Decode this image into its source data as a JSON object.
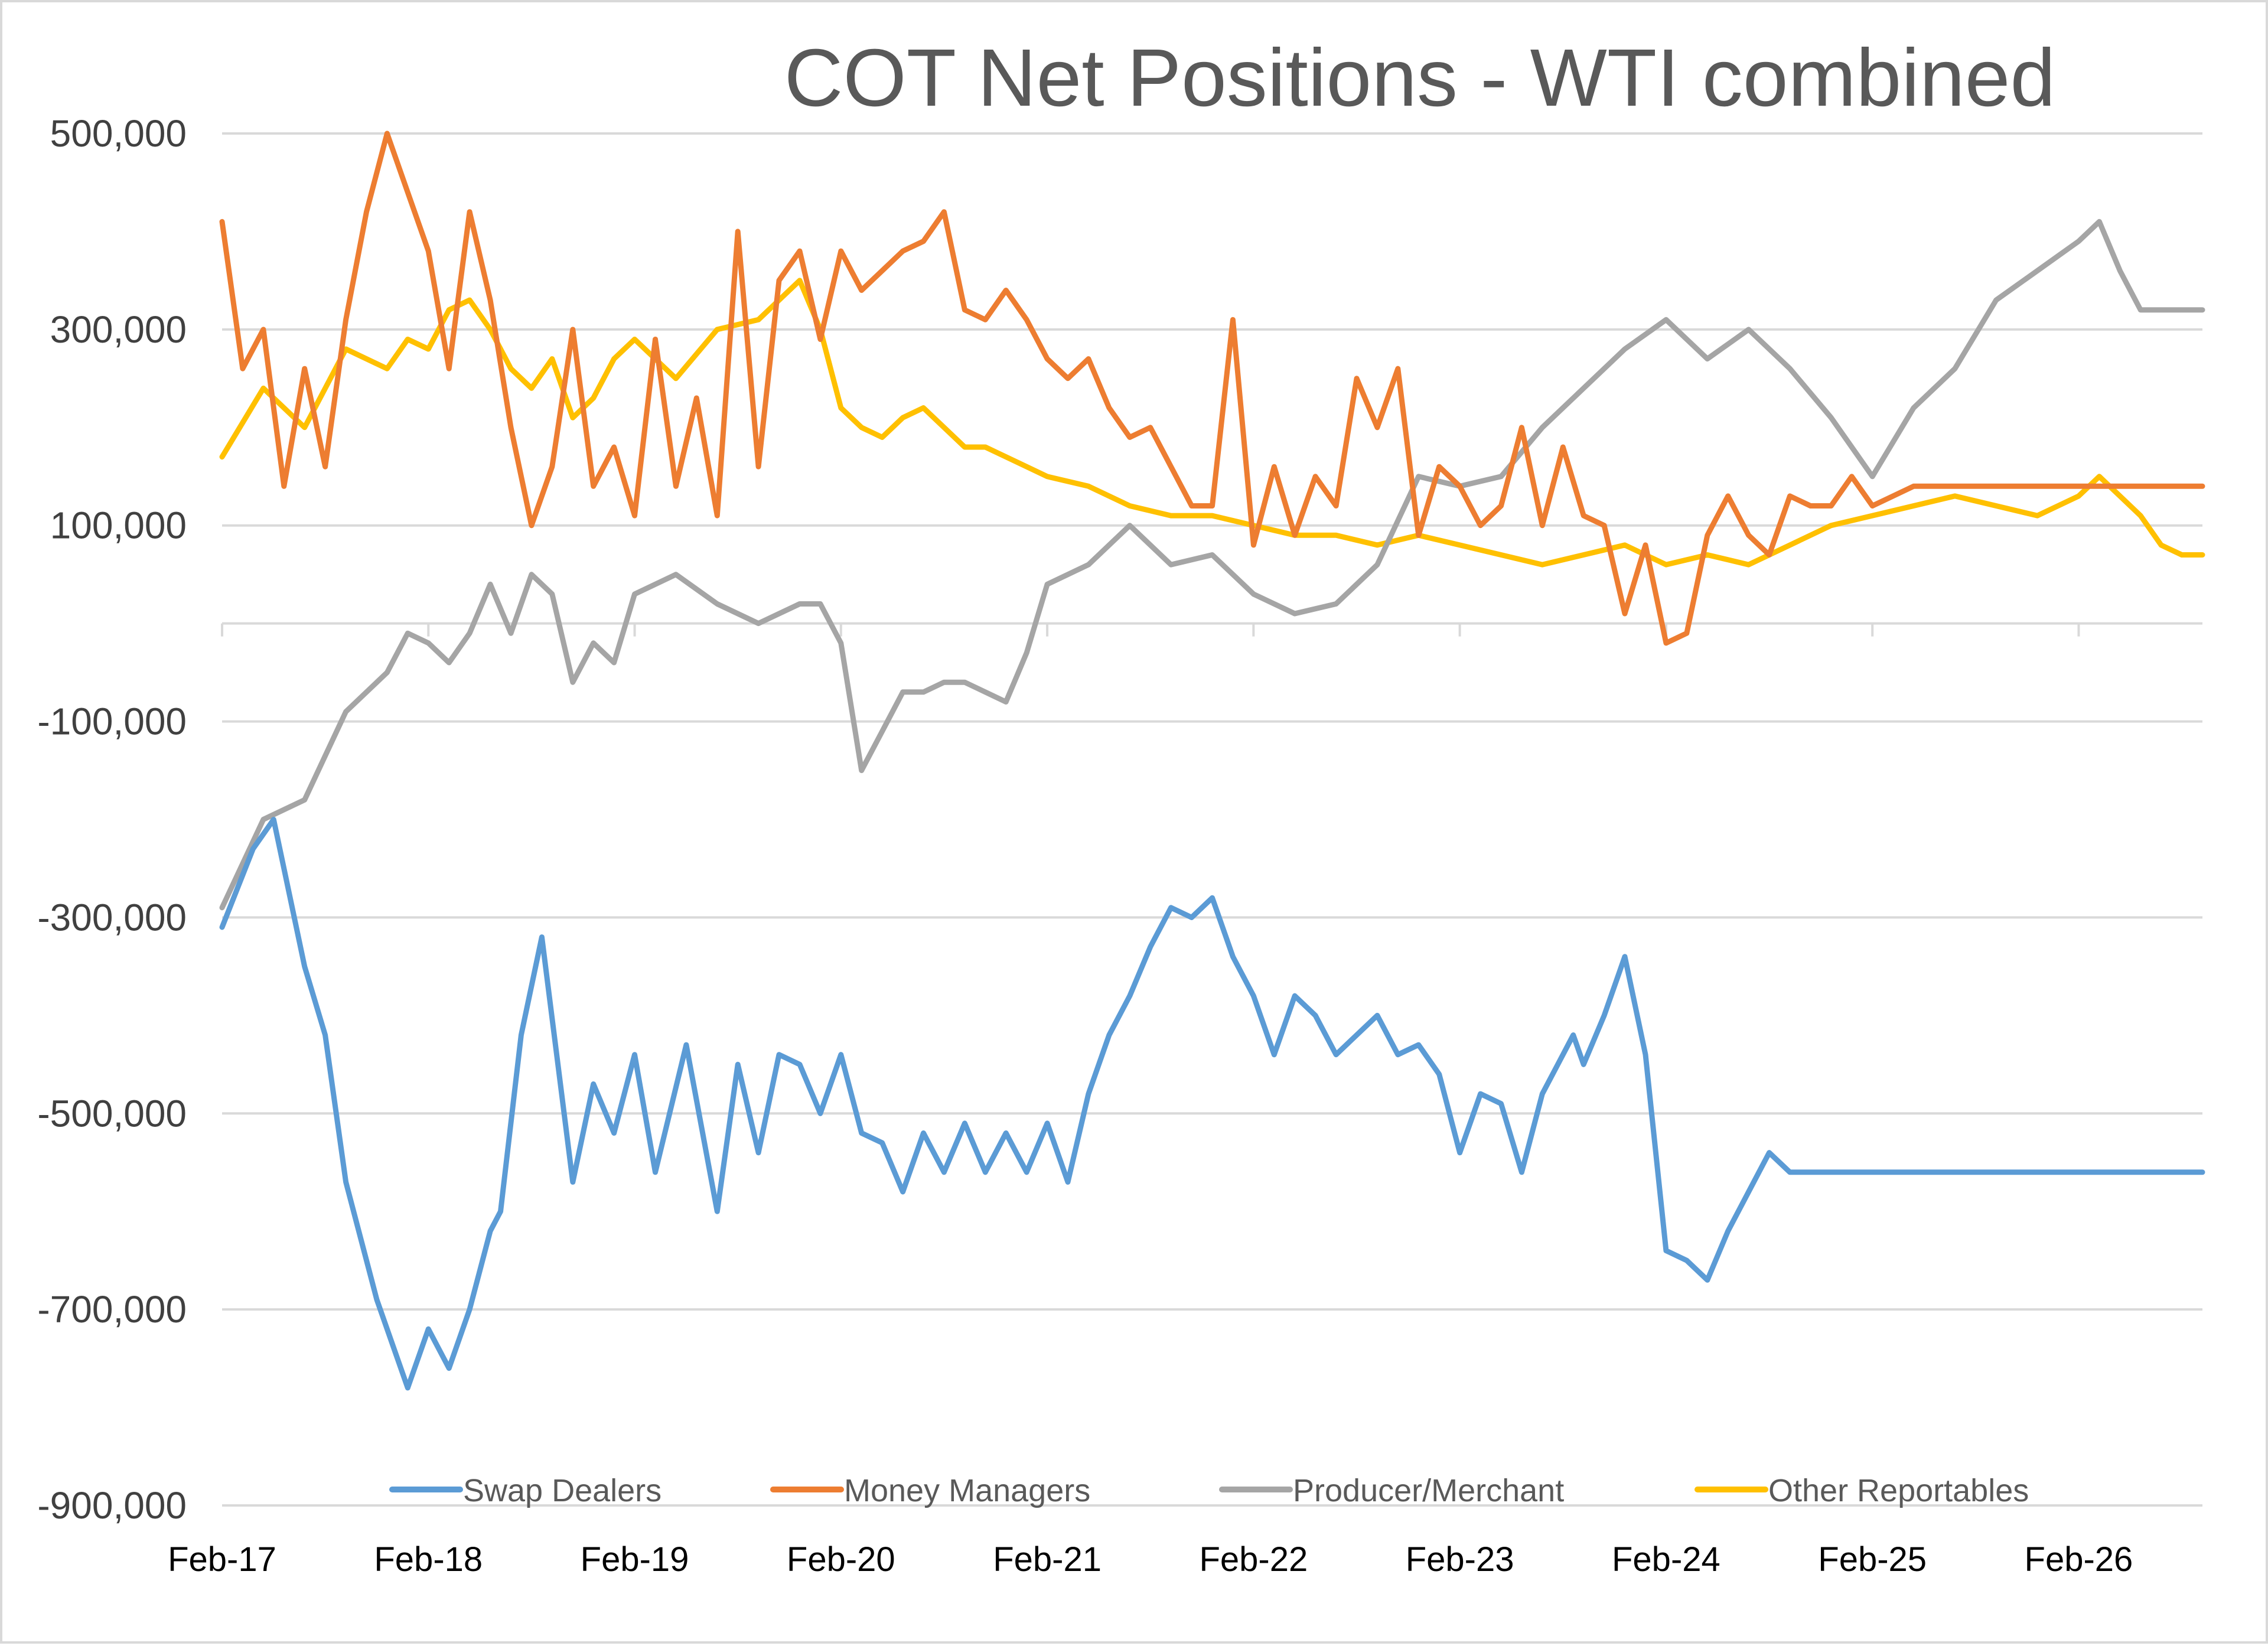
{
  "chart_data": {
    "type": "line",
    "title": "COT Net Positions - WTI combined",
    "xlabel": "",
    "ylabel": "",
    "ylim": [
      -900000,
      500000
    ],
    "yticks": [
      500000,
      300000,
      100000,
      -100000,
      -300000,
      -500000,
      -700000,
      -900000
    ],
    "ytick_labels": [
      "500,000",
      "300,000",
      "100,000",
      "-100,000",
      "-300,000",
      "-500,000",
      "-700,000",
      "-900,000"
    ],
    "x_range": [
      2017.0,
      2026.6
    ],
    "xticks": [
      2017,
      2018,
      2019,
      2020,
      2021,
      2022,
      2023,
      2024,
      2025,
      2026
    ],
    "xtick_labels": [
      "Feb-17",
      "Feb-18",
      "Feb-19",
      "Feb-20",
      "Feb-21",
      "Feb-22",
      "Feb-23",
      "Feb-24",
      "Feb-25",
      "Feb-26"
    ],
    "grid": "horizontal",
    "legend_position": "bottom",
    "series": [
      {
        "name": "Swap Dealers",
        "color": "#5b9bd5",
        "x": [
          2017.0,
          2017.15,
          2017.25,
          2017.4,
          2017.5,
          2017.6,
          2017.75,
          2017.9,
          2018.0,
          2018.1,
          2018.2,
          2018.3,
          2018.35,
          2018.45,
          2018.55,
          2018.7,
          2018.8,
          2018.9,
          2019.0,
          2019.1,
          2019.25,
          2019.4,
          2019.5,
          2019.6,
          2019.7,
          2019.8,
          2019.9,
          2020.0,
          2020.1,
          2020.2,
          2020.3,
          2020.4,
          2020.5,
          2020.6,
          2020.7,
          2020.8,
          2020.9,
          2021.0,
          2021.1,
          2021.2,
          2021.3,
          2021.4,
          2021.5,
          2021.6,
          2021.7,
          2021.8,
          2021.9,
          2022.0,
          2022.1,
          2022.2,
          2022.3,
          2022.4,
          2022.5,
          2022.6,
          2022.7,
          2022.8,
          2022.9,
          2023.0,
          2023.1,
          2023.2,
          2023.3,
          2023.4,
          2023.5,
          2023.55,
          2023.6,
          2023.7,
          2023.8,
          2023.9,
          2024.0,
          2024.1,
          2024.2,
          2024.3,
          2024.4,
          2024.5,
          2024.6,
          2024.7,
          2024.8,
          2024.9,
          2025.0,
          2025.1,
          2025.2,
          2025.3,
          2025.4,
          2025.5,
          2025.6,
          2025.7,
          2025.8,
          2025.9,
          2026.0,
          2026.1,
          2026.2,
          2026.3,
          2026.4,
          2026.5,
          2026.6
        ],
        "values": [
          -310000,
          -230000,
          -200000,
          -350000,
          -420000,
          -570000,
          -690000,
          -780000,
          -720000,
          -760000,
          -700000,
          -620000,
          -600000,
          -420000,
          -320000,
          -570000,
          -470000,
          -520000,
          -440000,
          -560000,
          -430000,
          -600000,
          -450000,
          -540000,
          -440000,
          -450000,
          -500000,
          -440000,
          -520000,
          -530000,
          -580000,
          -520000,
          -560000,
          -510000,
          -560000,
          -520000,
          -560000,
          -510000,
          -570000,
          -480000,
          -420000,
          -380000,
          -330000,
          -290000,
          -300000,
          -280000,
          -340000,
          -380000,
          -440000,
          -380000,
          -400000,
          -440000,
          -420000,
          -400000,
          -440000,
          -430000,
          -460000,
          -540000,
          -480000,
          -490000,
          -560000,
          -480000,
          -440000,
          -420000,
          -450000,
          -400000,
          -340000,
          -440000,
          -640000,
          -650000,
          -670000,
          -620000,
          -580000,
          -540000,
          -560000,
          -560000,
          -560000,
          -560000,
          -560000,
          -560000,
          -560000,
          -560000,
          -560000,
          -560000,
          -560000,
          -560000,
          -560000,
          -560000,
          -560000,
          -560000,
          -560000,
          -560000,
          -560000,
          -560000,
          -560000
        ]
      },
      {
        "name": "Money Managers",
        "color": "#ed7d31",
        "x": [
          2017.0,
          2017.1,
          2017.2,
          2017.3,
          2017.4,
          2017.5,
          2017.6,
          2017.7,
          2017.8,
          2017.9,
          2018.0,
          2018.1,
          2018.2,
          2018.3,
          2018.4,
          2018.5,
          2018.6,
          2018.7,
          2018.8,
          2018.9,
          2019.0,
          2019.1,
          2019.2,
          2019.3,
          2019.4,
          2019.5,
          2019.6,
          2019.7,
          2019.8,
          2019.9,
          2020.0,
          2020.1,
          2020.2,
          2020.3,
          2020.4,
          2020.5,
          2020.6,
          2020.7,
          2020.8,
          2020.9,
          2021.0,
          2021.1,
          2021.2,
          2021.3,
          2021.4,
          2021.5,
          2021.6,
          2021.7,
          2021.8,
          2021.9,
          2022.0,
          2022.1,
          2022.2,
          2022.3,
          2022.4,
          2022.5,
          2022.6,
          2022.7,
          2022.8,
          2022.9,
          2023.0,
          2023.1,
          2023.2,
          2023.3,
          2023.4,
          2023.5,
          2023.6,
          2023.7,
          2023.8,
          2023.9,
          2024.0,
          2024.1,
          2024.2,
          2024.3,
          2024.4,
          2024.5,
          2024.6,
          2024.7,
          2024.8,
          2024.9,
          2025.0,
          2025.1,
          2025.2,
          2025.3,
          2025.4,
          2025.5,
          2025.6,
          2025.7,
          2025.8,
          2025.9,
          2026.0,
          2026.1,
          2026.2,
          2026.3,
          2026.4,
          2026.5,
          2026.6
        ],
        "values": [
          410000,
          260000,
          300000,
          140000,
          260000,
          160000,
          310000,
          420000,
          500000,
          440000,
          380000,
          260000,
          420000,
          330000,
          200000,
          100000,
          160000,
          300000,
          140000,
          180000,
          110000,
          290000,
          140000,
          230000,
          110000,
          400000,
          160000,
          350000,
          380000,
          290000,
          380000,
          340000,
          360000,
          380000,
          390000,
          420000,
          320000,
          310000,
          340000,
          310000,
          270000,
          250000,
          270000,
          220000,
          190000,
          200000,
          160000,
          120000,
          120000,
          310000,
          80000,
          160000,
          90000,
          150000,
          120000,
          250000,
          200000,
          260000,
          90000,
          160000,
          140000,
          100000,
          120000,
          200000,
          100000,
          180000,
          110000,
          100000,
          10000,
          80000,
          -20000,
          -10000,
          90000,
          130000,
          90000,
          70000,
          130000,
          120000,
          120000,
          150000,
          120000,
          130000,
          140000,
          140000,
          140000,
          140000,
          140000,
          140000,
          140000,
          140000,
          140000,
          140000,
          140000,
          140000,
          140000,
          140000,
          140000
        ]
      },
      {
        "name": "Producer/Merchant",
        "color": "#a5a5a5",
        "x": [
          2017.0,
          2017.2,
          2017.4,
          2017.6,
          2017.8,
          2017.9,
          2018.0,
          2018.1,
          2018.2,
          2018.3,
          2018.4,
          2018.5,
          2018.6,
          2018.7,
          2018.8,
          2018.9,
          2019.0,
          2019.2,
          2019.4,
          2019.6,
          2019.8,
          2019.9,
          2020.0,
          2020.1,
          2020.2,
          2020.3,
          2020.4,
          2020.5,
          2020.6,
          2020.7,
          2020.8,
          2020.9,
          2021.0,
          2021.2,
          2021.4,
          2021.6,
          2021.8,
          2022.0,
          2022.2,
          2022.4,
          2022.6,
          2022.8,
          2023.0,
          2023.2,
          2023.4,
          2023.6,
          2023.8,
          2024.0,
          2024.2,
          2024.4,
          2024.6,
          2024.8,
          2025.0,
          2025.2,
          2025.4,
          2025.6,
          2025.8,
          2026.0,
          2026.1,
          2026.2,
          2026.3,
          2026.4,
          2026.5,
          2026.6
        ],
        "values": [
          -290000,
          -200000,
          -180000,
          -90000,
          -50000,
          -10000,
          -20000,
          -40000,
          -10000,
          40000,
          -10000,
          50000,
          30000,
          -60000,
          -20000,
          -40000,
          30000,
          50000,
          20000,
          0,
          20000,
          20000,
          -20000,
          -150000,
          -110000,
          -70000,
          -70000,
          -60000,
          -60000,
          -70000,
          -80000,
          -30000,
          40000,
          60000,
          100000,
          60000,
          70000,
          30000,
          10000,
          20000,
          60000,
          150000,
          140000,
          150000,
          200000,
          240000,
          280000,
          310000,
          270000,
          300000,
          260000,
          210000,
          150000,
          220000,
          260000,
          330000,
          360000,
          390000,
          410000,
          360000,
          320000,
          320000,
          320000,
          320000
        ]
      },
      {
        "name": "Other Reportables",
        "color": "#ffc000",
        "x": [
          2017.0,
          2017.2,
          2017.4,
          2017.6,
          2017.8,
          2017.9,
          2018.0,
          2018.1,
          2018.2,
          2018.3,
          2018.4,
          2018.5,
          2018.6,
          2018.7,
          2018.8,
          2018.9,
          2019.0,
          2019.2,
          2019.4,
          2019.6,
          2019.8,
          2019.9,
          2020.0,
          2020.1,
          2020.2,
          2020.3,
          2020.4,
          2020.5,
          2020.6,
          2020.7,
          2020.8,
          2020.9,
          2021.0,
          2021.2,
          2021.4,
          2021.6,
          2021.8,
          2022.0,
          2022.2,
          2022.4,
          2022.6,
          2022.8,
          2023.0,
          2023.2,
          2023.4,
          2023.6,
          2023.8,
          2024.0,
          2024.2,
          2024.4,
          2024.6,
          2024.8,
          2025.0,
          2025.2,
          2025.4,
          2025.6,
          2025.8,
          2026.0,
          2026.1,
          2026.2,
          2026.3,
          2026.4,
          2026.5,
          2026.6
        ],
        "values": [
          170000,
          240000,
          200000,
          280000,
          260000,
          290000,
          280000,
          320000,
          330000,
          300000,
          260000,
          240000,
          270000,
          210000,
          230000,
          270000,
          290000,
          250000,
          300000,
          310000,
          350000,
          300000,
          220000,
          200000,
          190000,
          210000,
          220000,
          200000,
          180000,
          180000,
          170000,
          160000,
          150000,
          140000,
          120000,
          110000,
          110000,
          100000,
          90000,
          90000,
          80000,
          90000,
          80000,
          70000,
          60000,
          70000,
          80000,
          60000,
          70000,
          60000,
          80000,
          100000,
          110000,
          120000,
          130000,
          120000,
          110000,
          130000,
          150000,
          130000,
          110000,
          80000,
          70000,
          70000
        ]
      }
    ]
  }
}
